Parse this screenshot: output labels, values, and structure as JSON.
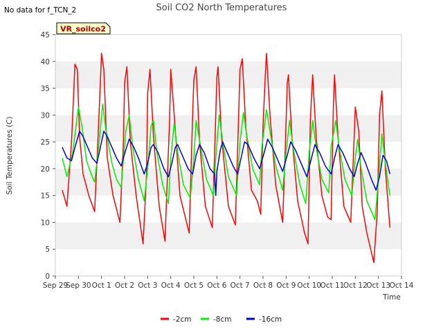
{
  "header": {
    "nodata_note": "No data for f_TCN_2",
    "title": "Soil CO2 North Temperatures"
  },
  "badge": {
    "label": "VR_soilco2",
    "fill": "#ffffcc",
    "border": "#000000",
    "text_color": "#aa0000"
  },
  "chart_data": {
    "type": "line",
    "title": "Soil CO2 North Temperatures",
    "xlabel": "Time",
    "ylabel": "Soil Temperatures (C)",
    "ylim": [
      0,
      45
    ],
    "yticks": [
      0,
      5,
      10,
      15,
      20,
      25,
      30,
      35,
      40,
      45
    ],
    "xlim": [
      0,
      15
    ],
    "xticks": [
      {
        "x": 0,
        "label": "Sep 29"
      },
      {
        "x": 1,
        "label": "Sep 30"
      },
      {
        "x": 2,
        "label": "Oct 1"
      },
      {
        "x": 3,
        "label": "Oct 2"
      },
      {
        "x": 4,
        "label": "Oct 3"
      },
      {
        "x": 5,
        "label": "Oct 4"
      },
      {
        "x": 6,
        "label": "Oct 5"
      },
      {
        "x": 7,
        "label": "Oct 6"
      },
      {
        "x": 8,
        "label": "Oct 7"
      },
      {
        "x": 9,
        "label": "Oct 8"
      },
      {
        "x": 10,
        "label": "Oct 9"
      },
      {
        "x": 11,
        "label": "Oct 10"
      },
      {
        "x": 12,
        "label": "Oct 11"
      },
      {
        "x": 13,
        "label": "Oct 12"
      },
      {
        "x": 14,
        "label": "Oct 13"
      },
      {
        "x": 15,
        "label": "Oct 14"
      }
    ],
    "x_unit": "days after Sep 29 00:00",
    "grid": "horizontal bands",
    "legend_position": "bottom",
    "series": [
      {
        "name": "-2cm",
        "color": "#ff0000",
        "points": [
          [
            0.3,
            16.0
          ],
          [
            0.5,
            13.0
          ],
          [
            0.7,
            25.0
          ],
          [
            0.85,
            39.5
          ],
          [
            0.95,
            38.5
          ],
          [
            1.05,
            26.0
          ],
          [
            1.2,
            19.0
          ],
          [
            1.45,
            15.0
          ],
          [
            1.7,
            12.0
          ],
          [
            1.85,
            26.0
          ],
          [
            2.0,
            41.5
          ],
          [
            2.1,
            38.5
          ],
          [
            2.25,
            22.0
          ],
          [
            2.5,
            15.0
          ],
          [
            2.8,
            10.0
          ],
          [
            2.95,
            25.0
          ],
          [
            3.0,
            36.0
          ],
          [
            3.1,
            39.0
          ],
          [
            3.25,
            25.0
          ],
          [
            3.5,
            15.0
          ],
          [
            3.8,
            6.0
          ],
          [
            3.95,
            19.0
          ],
          [
            4.0,
            34.0
          ],
          [
            4.1,
            38.5
          ],
          [
            4.25,
            26.0
          ],
          [
            4.5,
            13.0
          ],
          [
            4.75,
            6.5
          ],
          [
            4.95,
            29.0
          ],
          [
            5.0,
            38.5
          ],
          [
            5.15,
            30.0
          ],
          [
            5.4,
            15.0
          ],
          [
            5.8,
            8.0
          ],
          [
            5.95,
            30.0
          ],
          [
            6.0,
            36.5
          ],
          [
            6.1,
            39.0
          ],
          [
            6.25,
            25.0
          ],
          [
            6.5,
            13.0
          ],
          [
            6.8,
            9.0
          ],
          [
            6.95,
            30.0
          ],
          [
            7.0,
            37.0
          ],
          [
            7.05,
            39.0
          ],
          [
            7.2,
            26.0
          ],
          [
            7.5,
            13.0
          ],
          [
            7.8,
            9.5
          ],
          [
            7.95,
            31.0
          ],
          [
            8.0,
            38.5
          ],
          [
            8.1,
            40.5
          ],
          [
            8.25,
            28.0
          ],
          [
            8.5,
            16.0
          ],
          [
            8.75,
            14.0
          ],
          [
            8.9,
            11.5
          ],
          [
            9.0,
            28.0
          ],
          [
            9.1,
            37.5
          ],
          [
            9.15,
            41.5
          ],
          [
            9.3,
            30.0
          ],
          [
            9.55,
            17.0
          ],
          [
            9.85,
            10.0
          ],
          [
            9.95,
            22.0
          ],
          [
            10.05,
            36.0
          ],
          [
            10.1,
            37.5
          ],
          [
            10.25,
            26.0
          ],
          [
            10.5,
            14.0
          ],
          [
            10.8,
            8.0
          ],
          [
            10.95,
            6.0
          ],
          [
            11.05,
            29.0
          ],
          [
            11.15,
            37.5
          ],
          [
            11.3,
            26.0
          ],
          [
            11.55,
            15.0
          ],
          [
            11.8,
            11.0
          ],
          [
            11.95,
            10.5
          ],
          [
            12.05,
            32.0
          ],
          [
            12.1,
            37.5
          ],
          [
            12.25,
            26.0
          ],
          [
            12.5,
            13.0
          ],
          [
            12.8,
            10.0
          ],
          [
            12.95,
            26.0
          ],
          [
            13.0,
            31.5
          ],
          [
            13.15,
            27.0
          ],
          [
            13.3,
            13.0
          ],
          [
            13.5,
            8.0
          ],
          [
            13.8,
            2.5
          ],
          [
            13.95,
            12.0
          ],
          [
            14.05,
            30.0
          ],
          [
            14.15,
            34.5
          ],
          [
            14.3,
            20.0
          ],
          [
            14.5,
            9.0
          ]
        ]
      },
      {
        "name": "-8cm",
        "color": "#00ee00",
        "points": [
          [
            0.3,
            22.0
          ],
          [
            0.5,
            18.5
          ],
          [
            0.75,
            23.0
          ],
          [
            1.0,
            31.5
          ],
          [
            1.15,
            28.0
          ],
          [
            1.35,
            21.5
          ],
          [
            1.55,
            19.0
          ],
          [
            1.7,
            17.5
          ],
          [
            1.9,
            25.0
          ],
          [
            2.05,
            32.0
          ],
          [
            2.2,
            27.0
          ],
          [
            2.45,
            21.0
          ],
          [
            2.65,
            18.0
          ],
          [
            2.85,
            16.5
          ],
          [
            3.05,
            27.0
          ],
          [
            3.2,
            30.0
          ],
          [
            3.35,
            24.0
          ],
          [
            3.6,
            18.0
          ],
          [
            3.85,
            14.0
          ],
          [
            4.0,
            20.0
          ],
          [
            4.15,
            28.0
          ],
          [
            4.25,
            29.0
          ],
          [
            4.4,
            23.0
          ],
          [
            4.65,
            17.0
          ],
          [
            4.9,
            13.5
          ],
          [
            5.0,
            22.0
          ],
          [
            5.15,
            28.5
          ],
          [
            5.3,
            23.0
          ],
          [
            5.55,
            17.0
          ],
          [
            5.85,
            14.5
          ],
          [
            6.0,
            22.0
          ],
          [
            6.1,
            29.0
          ],
          [
            6.3,
            24.0
          ],
          [
            6.55,
            18.0
          ],
          [
            6.85,
            15.0
          ],
          [
            6.95,
            22.0
          ],
          [
            7.1,
            30.0
          ],
          [
            7.25,
            25.0
          ],
          [
            7.5,
            18.5
          ],
          [
            7.85,
            15.0
          ],
          [
            8.0,
            25.0
          ],
          [
            8.15,
            30.5
          ],
          [
            8.3,
            26.0
          ],
          [
            8.55,
            20.0
          ],
          [
            8.85,
            17.0
          ],
          [
            8.95,
            24.0
          ],
          [
            9.15,
            31.0
          ],
          [
            9.3,
            27.0
          ],
          [
            9.55,
            20.5
          ],
          [
            9.85,
            16.0
          ],
          [
            10.0,
            23.0
          ],
          [
            10.15,
            29.0
          ],
          [
            10.3,
            24.0
          ],
          [
            10.6,
            17.0
          ],
          [
            10.85,
            13.5
          ],
          [
            11.0,
            23.0
          ],
          [
            11.15,
            29.0
          ],
          [
            11.3,
            24.0
          ],
          [
            11.55,
            18.0
          ],
          [
            11.85,
            15.5
          ],
          [
            11.95,
            24.0
          ],
          [
            12.15,
            29.0
          ],
          [
            12.3,
            24.0
          ],
          [
            12.55,
            18.0
          ],
          [
            12.85,
            15.0
          ],
          [
            13.0,
            22.0
          ],
          [
            13.1,
            25.5
          ],
          [
            13.25,
            20.0
          ],
          [
            13.5,
            14.0
          ],
          [
            13.85,
            10.5
          ],
          [
            14.0,
            18.0
          ],
          [
            14.15,
            26.5
          ],
          [
            14.3,
            21.0
          ],
          [
            14.5,
            15.0
          ]
        ]
      },
      {
        "name": "-16cm",
        "color": "#0000cc",
        "points": [
          [
            0.3,
            24.0
          ],
          [
            0.5,
            22.0
          ],
          [
            0.7,
            21.5
          ],
          [
            0.85,
            24.0
          ],
          [
            1.05,
            27.0
          ],
          [
            1.2,
            26.0
          ],
          [
            1.4,
            24.0
          ],
          [
            1.6,
            22.0
          ],
          [
            1.8,
            21.0
          ],
          [
            1.95,
            24.0
          ],
          [
            2.1,
            27.0
          ],
          [
            2.25,
            26.0
          ],
          [
            2.45,
            24.0
          ],
          [
            2.65,
            22.0
          ],
          [
            2.85,
            20.5
          ],
          [
            3.05,
            23.5
          ],
          [
            3.2,
            25.5
          ],
          [
            3.4,
            24.0
          ],
          [
            3.6,
            22.0
          ],
          [
            3.85,
            19.0
          ],
          [
            4.0,
            21.0
          ],
          [
            4.15,
            24.0
          ],
          [
            4.25,
            24.5
          ],
          [
            4.45,
            23.0
          ],
          [
            4.7,
            20.0
          ],
          [
            4.9,
            18.5
          ],
          [
            5.05,
            21.0
          ],
          [
            5.2,
            24.0
          ],
          [
            5.3,
            24.5
          ],
          [
            5.5,
            22.5
          ],
          [
            5.75,
            20.0
          ],
          [
            5.95,
            19.0
          ],
          [
            6.1,
            22.5
          ],
          [
            6.25,
            24.5
          ],
          [
            6.45,
            23.0
          ],
          [
            6.7,
            20.0
          ],
          [
            6.9,
            19.0
          ],
          [
            6.95,
            15.0
          ],
          [
            7.0,
            19.5
          ],
          [
            7.15,
            23.5
          ],
          [
            7.25,
            25.0
          ],
          [
            7.45,
            23.0
          ],
          [
            7.7,
            20.5
          ],
          [
            7.9,
            19.0
          ],
          [
            8.05,
            22.0
          ],
          [
            8.2,
            25.0
          ],
          [
            8.35,
            24.5
          ],
          [
            8.6,
            22.0
          ],
          [
            8.85,
            20.0
          ],
          [
            9.05,
            23.0
          ],
          [
            9.2,
            25.5
          ],
          [
            9.4,
            24.0
          ],
          [
            9.65,
            21.5
          ],
          [
            9.85,
            19.5
          ],
          [
            10.05,
            22.5
          ],
          [
            10.2,
            25.0
          ],
          [
            10.4,
            23.5
          ],
          [
            10.65,
            21.0
          ],
          [
            10.9,
            18.5
          ],
          [
            11.1,
            22.0
          ],
          [
            11.25,
            24.5
          ],
          [
            11.45,
            23.0
          ],
          [
            11.7,
            20.5
          ],
          [
            11.95,
            19.0
          ],
          [
            12.1,
            22.0
          ],
          [
            12.25,
            24.5
          ],
          [
            12.45,
            23.0
          ],
          [
            12.75,
            20.0
          ],
          [
            12.95,
            18.5
          ],
          [
            13.1,
            21.0
          ],
          [
            13.25,
            23.0
          ],
          [
            13.45,
            21.0
          ],
          [
            13.7,
            18.0
          ],
          [
            13.9,
            16.0
          ],
          [
            14.05,
            18.5
          ],
          [
            14.2,
            22.5
          ],
          [
            14.35,
            21.5
          ],
          [
            14.5,
            19.0
          ]
        ]
      }
    ]
  },
  "style": {
    "band_color": "#f0f0f0",
    "plot_bg": "#ffffff"
  }
}
